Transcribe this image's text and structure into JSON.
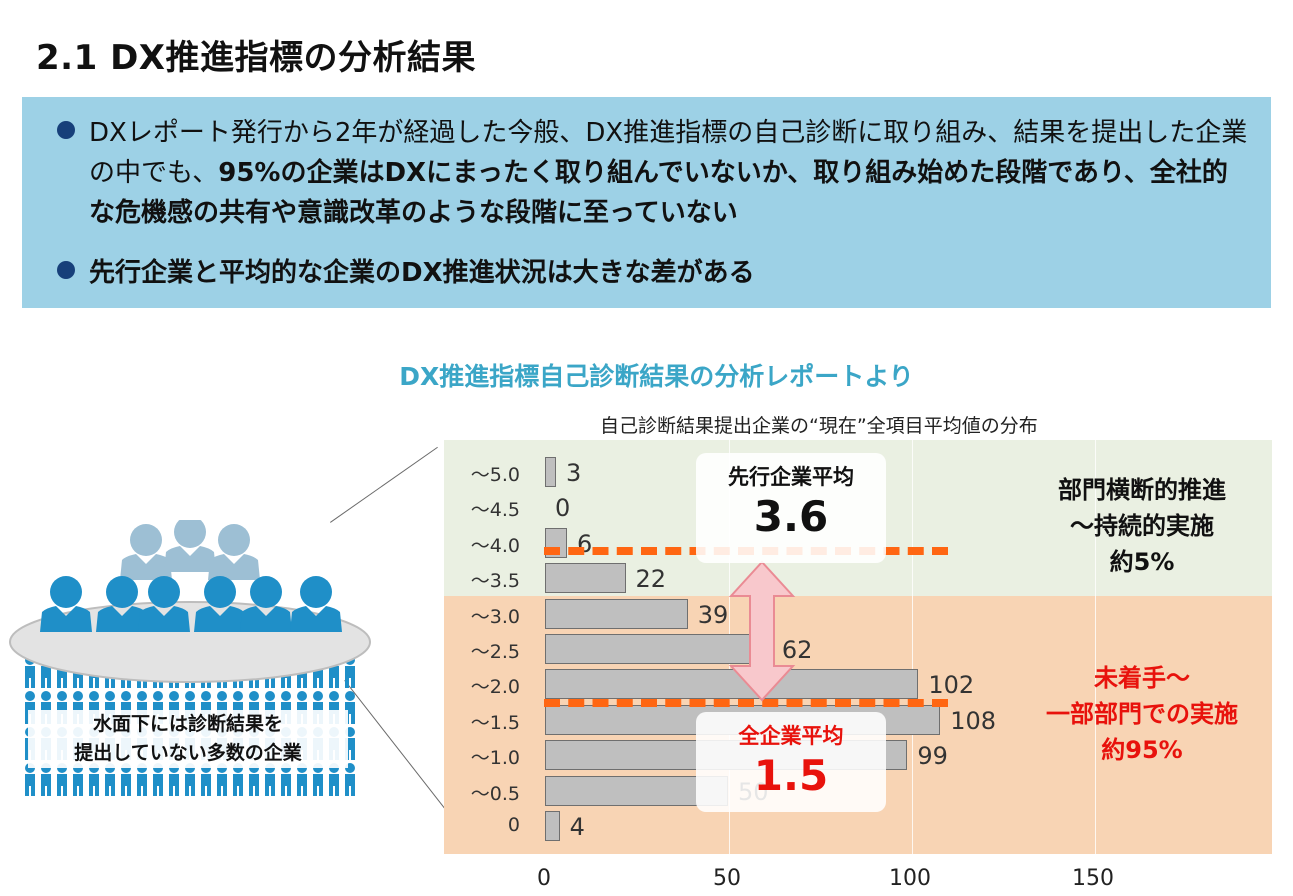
{
  "header": {
    "title": "2.1 DX推進指標の分析結果"
  },
  "summary": {
    "b1_p1": "DXレポート発行から2年が経過した今般、DX推進指標の自己診断に取り組み、結果を提出した企業の中でも、",
    "b1_p2": "95%の企業はDXにまったく取り組んでいないか、取り組み始めた段階であり、全社的な危機感の共有や意識改革のような段階に至っていない",
    "b2": "先行企業と平均的な企業のDX推進状況は大きな差がある"
  },
  "chart_section": {
    "title": "DX推進指標自己診断結果の分析レポートより",
    "subtitle": "自己診断結果提出企業の“現在”全項目平均値の分布"
  },
  "crowd": {
    "caption_line1": "水面下には診断結果を",
    "caption_line2": "提出していない多数の企業"
  },
  "callouts": {
    "leader_label": "先行企業平均",
    "leader_value": "3.6",
    "all_label": "全企業平均",
    "all_value": "1.5"
  },
  "zones": {
    "top_line1": "部門横断的推進",
    "top_line2": "～持続的実施",
    "top_line3": "約5%",
    "bottom_line1": "未着手～",
    "bottom_line2": "一部部門での実施",
    "bottom_line3": "約95%"
  },
  "colors": {
    "accent": "#ff6612",
    "red": "#e8120c",
    "box": "#9dd1e6",
    "person": "#1f8fc8"
  },
  "chart_data": {
    "type": "bar",
    "orientation": "horizontal",
    "categories": [
      "～5.0",
      "～4.5",
      "～4.0",
      "～3.5",
      "～3.0",
      "～2.5",
      "～2.0",
      "～1.5",
      "～1.0",
      "～0.5",
      "0"
    ],
    "values": [
      3,
      0,
      6,
      22,
      39,
      62,
      102,
      108,
      99,
      50,
      4
    ],
    "value_labels": [
      "3",
      "0",
      "6",
      "22",
      "39",
      "62",
      "102",
      "108",
      "99",
      "50",
      "4"
    ],
    "x_ticks": [
      "0",
      "50",
      "100",
      "150"
    ],
    "xlim": [
      0,
      200
    ]
  }
}
